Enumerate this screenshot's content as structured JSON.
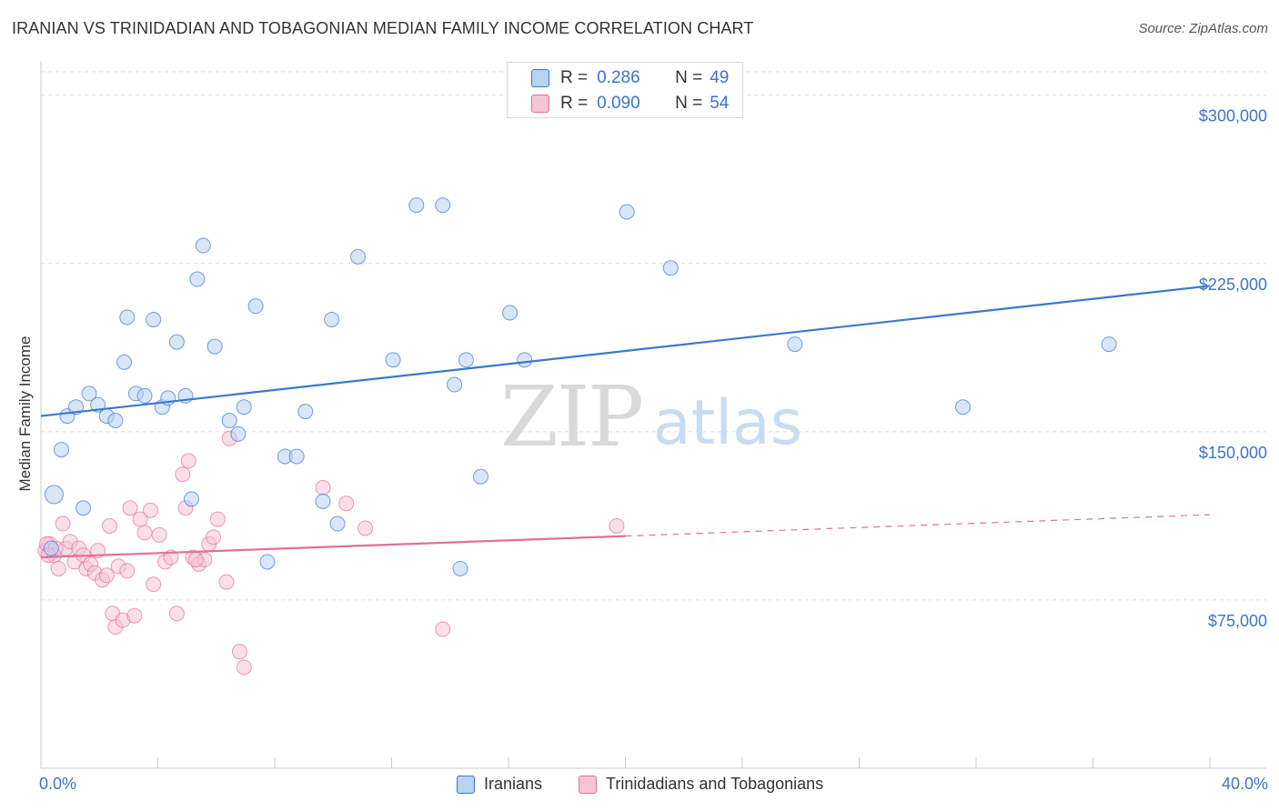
{
  "title": "IRANIAN VS TRINIDADIAN AND TOBAGONIAN MEDIAN FAMILY INCOME CORRELATION CHART",
  "source": "Source: ZipAtlas.com",
  "watermark": {
    "zip": "ZIP",
    "atlas": "atlas"
  },
  "colors": {
    "blue": "#3a78d0",
    "blue_fill": "#b8d2f2",
    "pink": "#e2709a",
    "pink_fill": "#f7c4d5",
    "axis_text": "#3b75c9",
    "grid": "#dddddd"
  },
  "stats": [
    {
      "r_label": "R =",
      "r_value": "0.286",
      "n_label": "N =",
      "n_value": "49"
    },
    {
      "r_label": "R =",
      "r_value": "0.090",
      "n_label": "N =",
      "n_value": "54"
    }
  ],
  "chart_data": {
    "type": "scatter",
    "title": "IRANIAN VS TRINIDADIAN AND TOBAGONIAN MEDIAN FAMILY INCOME CORRELATION CHART",
    "xlabel": "",
    "ylabel": "Median Family Income",
    "x_tick_labels": [
      "0.0%",
      "40.0%"
    ],
    "y_tick_labels": [
      "$75,000",
      "$150,000",
      "$225,000",
      "$300,000"
    ],
    "y_ticks": [
      75000,
      150000,
      225000,
      300000
    ],
    "xlim": [
      0,
      40
    ],
    "ylim": [
      0,
      310000
    ],
    "grid": true,
    "legend_position": "bottom",
    "series": [
      {
        "name": "Iranians",
        "color": "#3a78d0",
        "trend": {
          "x": [
            0,
            40
          ],
          "y": [
            157000,
            215000
          ],
          "dashed_from": null
        },
        "points": [
          [
            0.45,
            122000
          ],
          [
            0.7,
            142000
          ],
          [
            0.9,
            157000
          ],
          [
            1.2,
            161000
          ],
          [
            1.45,
            116000
          ],
          [
            1.65,
            167000
          ],
          [
            1.95,
            162000
          ],
          [
            2.25,
            157000
          ],
          [
            2.55,
            155000
          ],
          [
            2.85,
            181000
          ],
          [
            2.95,
            201000
          ],
          [
            3.25,
            167000
          ],
          [
            3.55,
            166000
          ],
          [
            3.85,
            200000
          ],
          [
            4.15,
            161000
          ],
          [
            4.35,
            165000
          ],
          [
            4.65,
            190000
          ],
          [
            4.95,
            166000
          ],
          [
            5.15,
            120000
          ],
          [
            5.35,
            218000
          ],
          [
            5.55,
            233000
          ],
          [
            5.95,
            188000
          ],
          [
            6.45,
            155000
          ],
          [
            6.75,
            149000
          ],
          [
            6.95,
            161000
          ],
          [
            7.35,
            206000
          ],
          [
            7.75,
            92000
          ],
          [
            8.35,
            139000
          ],
          [
            8.75,
            139000
          ],
          [
            9.05,
            159000
          ],
          [
            9.65,
            119000
          ],
          [
            9.95,
            200000
          ],
          [
            10.15,
            109000
          ],
          [
            10.85,
            228000
          ],
          [
            12.05,
            182000
          ],
          [
            12.85,
            251000
          ],
          [
            13.75,
            251000
          ],
          [
            14.15,
            171000
          ],
          [
            14.35,
            89000
          ],
          [
            14.55,
            182000
          ],
          [
            15.05,
            130000
          ],
          [
            16.05,
            203000
          ],
          [
            16.55,
            182000
          ],
          [
            20.05,
            248000
          ],
          [
            21.55,
            223000
          ],
          [
            25.8,
            189000
          ],
          [
            31.55,
            161000
          ],
          [
            36.55,
            189000
          ],
          [
            0.35,
            98000
          ]
        ]
      },
      {
        "name": "Trinidadians and Tobagonians",
        "color": "#e2709a",
        "trend": {
          "x": [
            0,
            40
          ],
          "y": [
            94000,
            113000
          ],
          "dashed_from": 20
        },
        "points": [
          [
            0.15,
            97000
          ],
          [
            0.3,
            100000
          ],
          [
            0.45,
            95000
          ],
          [
            0.6,
            89000
          ],
          [
            0.75,
            109000
          ],
          [
            0.85,
            98000
          ],
          [
            1.0,
            101000
          ],
          [
            1.15,
            92000
          ],
          [
            1.3,
            98000
          ],
          [
            1.45,
            95000
          ],
          [
            1.55,
            89000
          ],
          [
            1.7,
            91000
          ],
          [
            1.85,
            87000
          ],
          [
            1.95,
            97000
          ],
          [
            2.1,
            84000
          ],
          [
            2.25,
            86000
          ],
          [
            2.35,
            108000
          ],
          [
            2.45,
            69000
          ],
          [
            2.55,
            63000
          ],
          [
            2.65,
            90000
          ],
          [
            2.8,
            66000
          ],
          [
            2.95,
            88000
          ],
          [
            3.05,
            116000
          ],
          [
            3.2,
            68000
          ],
          [
            3.4,
            111000
          ],
          [
            3.55,
            105000
          ],
          [
            3.75,
            115000
          ],
          [
            3.85,
            82000
          ],
          [
            4.05,
            104000
          ],
          [
            4.25,
            92000
          ],
          [
            4.45,
            94000
          ],
          [
            4.65,
            69000
          ],
          [
            4.85,
            131000
          ],
          [
            4.95,
            116000
          ],
          [
            5.05,
            137000
          ],
          [
            5.2,
            94000
          ],
          [
            5.4,
            91000
          ],
          [
            5.6,
            93000
          ],
          [
            5.75,
            100000
          ],
          [
            5.9,
            103000
          ],
          [
            6.05,
            111000
          ],
          [
            6.35,
            83000
          ],
          [
            6.45,
            147000
          ],
          [
            6.8,
            52000
          ],
          [
            6.95,
            45000
          ],
          [
            9.65,
            125000
          ],
          [
            10.45,
            118000
          ],
          [
            11.1,
            107000
          ],
          [
            13.75,
            62000
          ],
          [
            19.7,
            108000
          ],
          [
            0.2,
            100000
          ],
          [
            0.5,
            98000
          ],
          [
            0.25,
            95000
          ],
          [
            5.3,
            93000
          ]
        ]
      }
    ]
  }
}
